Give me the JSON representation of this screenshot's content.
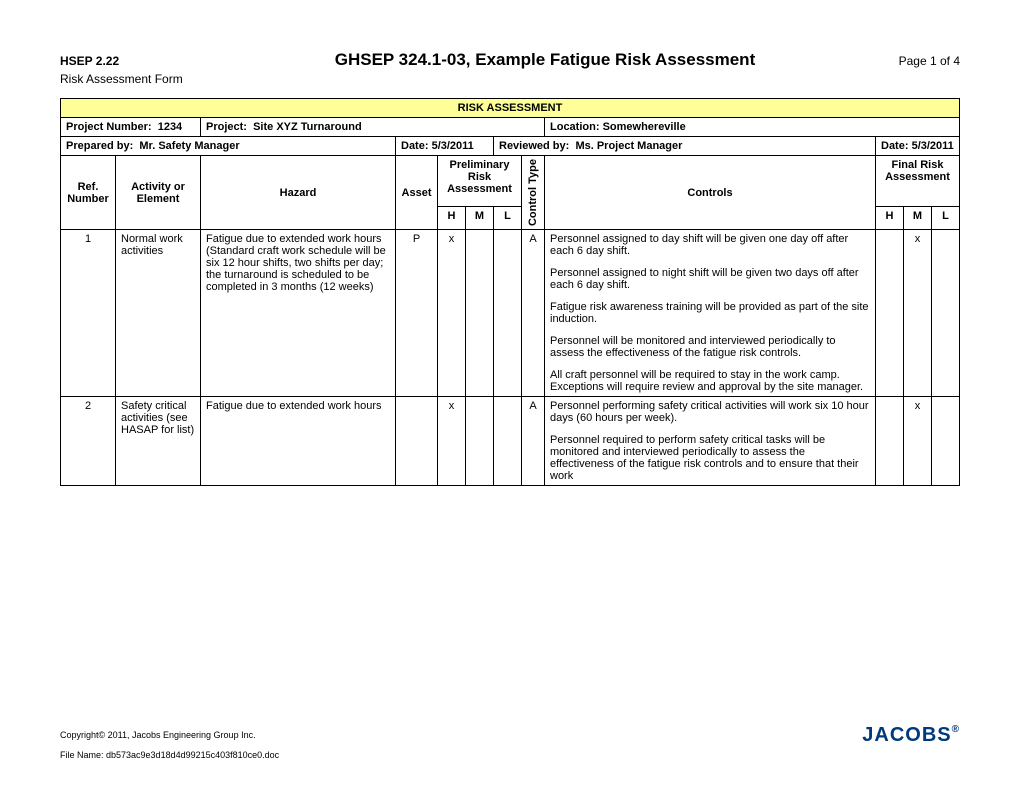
{
  "header": {
    "hsep_code": "HSEP 2.22",
    "title": "GHSEP 324.1-03, Example Fatigue Risk Assessment",
    "page_text": "Page 1 of 4",
    "subtitle": "Risk Assessment Form"
  },
  "table_title": "RISK ASSESSMENT",
  "info": {
    "project_number_label": "Project Number:",
    "project_number": "1234",
    "project_label": "Project:",
    "project": "Site XYZ Turnaround",
    "location_label": "Location:",
    "location": "Somewhereville",
    "prepared_by_label": "Prepared by:",
    "prepared_by": "Mr. Safety Manager",
    "date1_label": "Date:",
    "date1": "5/3/2011",
    "reviewed_by_label": "Reviewed by:",
    "reviewed_by": "Ms. Project Manager",
    "date2_label": "Date:",
    "date2": "5/3/2011"
  },
  "col_headers": {
    "ref": "Ref. Number",
    "activity": "Activity or Element",
    "hazard": "Hazard",
    "asset": "Asset",
    "prelim": "Preliminary Risk Assessment",
    "control_type": "Control Type",
    "controls": "Controls",
    "final": "Final Risk Assessment",
    "h": "H",
    "m": "M",
    "l": "L"
  },
  "rows": [
    {
      "ref": "1",
      "activity": "Normal work activities",
      "hazard": "Fatigue due to extended work hours (Standard craft work schedule will be  six 12 hour shifts, two shifts per day; the turnaround is scheduled to be completed in 3 months (12 weeks)",
      "asset": "P",
      "ph": "x",
      "pm": "",
      "pl": "",
      "ctype": "A",
      "controls": [
        "Personnel assigned to day shift will be given one day off after each 6 day shift.",
        "Personnel assigned to night shift will be given two days off after each 6 day shift.",
        "Fatigue risk awareness training will be provided as part of the site induction.",
        "Personnel will be monitored and interviewed periodically to assess the effectiveness of the fatigue risk controls.",
        "All craft personnel will be required to stay in the work camp.  Exceptions will require review and approval by the site manager."
      ],
      "fh": "",
      "fm": "x",
      "fl": ""
    },
    {
      "ref": "2",
      "activity": "Safety critical activities (see HASAP for list)",
      "hazard": "Fatigue due to extended work hours",
      "asset": "",
      "ph": "x",
      "pm": "",
      "pl": "",
      "ctype": "A",
      "controls": [
        "Personnel performing safety critical activities will work six 10 hour days (60 hours per week).",
        "Personnel required to perform safety critical tasks will be monitored and interviewed periodically to assess the effectiveness of the fatigue risk controls and to ensure that their work"
      ],
      "fh": "",
      "fm": "x",
      "fl": ""
    }
  ],
  "footer": {
    "copyright": "Copyright© 2011, Jacobs Engineering Group Inc.",
    "filename": "File Name: db573ac9e3d18d4d99215c403f810ce0.doc",
    "logo_text": "JACOBS"
  },
  "colors": {
    "header_bg": "#ffff99",
    "logo_color": "#003a7a"
  }
}
